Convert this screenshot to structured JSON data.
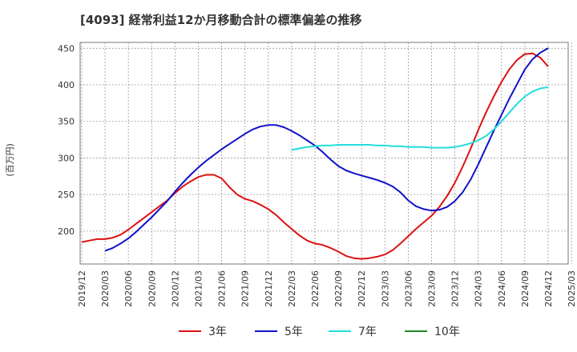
{
  "chart_data": {
    "type": "line",
    "title": "[4093]  経常利益12か月移動合計の標準偏差の推移",
    "ylabel": "(百万円)",
    "xlabel": "",
    "ylim": [
      155,
      458
    ],
    "y_ticks": [
      200,
      250,
      300,
      350,
      400,
      450
    ],
    "x_ticks": [
      "2019/12",
      "2020/03",
      "2020/06",
      "2020/09",
      "2020/12",
      "2021/03",
      "2021/06",
      "2021/09",
      "2021/12",
      "2022/03",
      "2022/06",
      "2022/09",
      "2022/12",
      "2023/03",
      "2023/06",
      "2023/09",
      "2023/12",
      "2024/03",
      "2024/06",
      "2024/09",
      "2024/12",
      "2025/03"
    ],
    "grid": true,
    "legend_position": "bottom",
    "series": [
      {
        "name": "3年",
        "color": "#dd1111",
        "points": [
          [
            "2019/12",
            185
          ],
          [
            "2020/01",
            187
          ],
          [
            "2020/02",
            189
          ],
          [
            "2020/03",
            189
          ],
          [
            "2020/04",
            191
          ],
          [
            "2020/05",
            195
          ],
          [
            "2020/06",
            202
          ],
          [
            "2020/07",
            210
          ],
          [
            "2020/08",
            218
          ],
          [
            "2020/09",
            226
          ],
          [
            "2020/10",
            234
          ],
          [
            "2020/11",
            242
          ],
          [
            "2020/12",
            252
          ],
          [
            "2021/01",
            261
          ],
          [
            "2021/02",
            268
          ],
          [
            "2021/03",
            274
          ],
          [
            "2021/04",
            277
          ],
          [
            "2021/05",
            277
          ],
          [
            "2021/06",
            272
          ],
          [
            "2021/07",
            260
          ],
          [
            "2021/08",
            250
          ],
          [
            "2021/09",
            244
          ],
          [
            "2021/10",
            241
          ],
          [
            "2021/11",
            236
          ],
          [
            "2021/12",
            230
          ],
          [
            "2022/01",
            222
          ],
          [
            "2022/02",
            212
          ],
          [
            "2022/03",
            203
          ],
          [
            "2022/04",
            194
          ],
          [
            "2022/05",
            187
          ],
          [
            "2022/06",
            183
          ],
          [
            "2022/07",
            181
          ],
          [
            "2022/08",
            177
          ],
          [
            "2022/09",
            172
          ],
          [
            "2022/10",
            166
          ],
          [
            "2022/11",
            163
          ],
          [
            "2022/12",
            162
          ],
          [
            "2023/01",
            163
          ],
          [
            "2023/02",
            165
          ],
          [
            "2023/03",
            168
          ],
          [
            "2023/04",
            174
          ],
          [
            "2023/05",
            183
          ],
          [
            "2023/06",
            193
          ],
          [
            "2023/07",
            203
          ],
          [
            "2023/08",
            212
          ],
          [
            "2023/09",
            221
          ],
          [
            "2023/10",
            233
          ],
          [
            "2023/11",
            248
          ],
          [
            "2023/12",
            266
          ],
          [
            "2024/01",
            288
          ],
          [
            "2024/02",
            312
          ],
          [
            "2024/03",
            338
          ],
          [
            "2024/04",
            362
          ],
          [
            "2024/05",
            384
          ],
          [
            "2024/06",
            404
          ],
          [
            "2024/07",
            421
          ],
          [
            "2024/08",
            434
          ],
          [
            "2024/09",
            442
          ],
          [
            "2024/10",
            443
          ],
          [
            "2024/11",
            437
          ],
          [
            "2024/12",
            425
          ]
        ]
      },
      {
        "name": "5年",
        "color": "#1111cc",
        "points": [
          [
            "2020/03",
            173
          ],
          [
            "2020/04",
            177
          ],
          [
            "2020/05",
            183
          ],
          [
            "2020/06",
            190
          ],
          [
            "2020/07",
            199
          ],
          [
            "2020/08",
            209
          ],
          [
            "2020/09",
            219
          ],
          [
            "2020/10",
            230
          ],
          [
            "2020/11",
            241
          ],
          [
            "2020/12",
            254
          ],
          [
            "2021/01",
            266
          ],
          [
            "2021/02",
            277
          ],
          [
            "2021/03",
            287
          ],
          [
            "2021/04",
            296
          ],
          [
            "2021/05",
            304
          ],
          [
            "2021/06",
            312
          ],
          [
            "2021/07",
            319
          ],
          [
            "2021/08",
            326
          ],
          [
            "2021/09",
            333
          ],
          [
            "2021/10",
            339
          ],
          [
            "2021/11",
            343
          ],
          [
            "2021/12",
            345
          ],
          [
            "2022/01",
            345
          ],
          [
            "2022/02",
            342
          ],
          [
            "2022/03",
            337
          ],
          [
            "2022/04",
            331
          ],
          [
            "2022/05",
            324
          ],
          [
            "2022/06",
            317
          ],
          [
            "2022/07",
            308
          ],
          [
            "2022/08",
            298
          ],
          [
            "2022/09",
            289
          ],
          [
            "2022/10",
            283
          ],
          [
            "2022/11",
            279
          ],
          [
            "2022/12",
            276
          ],
          [
            "2023/01",
            273
          ],
          [
            "2023/02",
            270
          ],
          [
            "2023/03",
            266
          ],
          [
            "2023/04",
            261
          ],
          [
            "2023/05",
            253
          ],
          [
            "2023/06",
            242
          ],
          [
            "2023/07",
            234
          ],
          [
            "2023/08",
            230
          ],
          [
            "2023/09",
            228
          ],
          [
            "2023/10",
            229
          ],
          [
            "2023/11",
            233
          ],
          [
            "2023/12",
            241
          ],
          [
            "2024/01",
            253
          ],
          [
            "2024/02",
            270
          ],
          [
            "2024/03",
            291
          ],
          [
            "2024/04",
            314
          ],
          [
            "2024/05",
            337
          ],
          [
            "2024/06",
            359
          ],
          [
            "2024/07",
            381
          ],
          [
            "2024/08",
            401
          ],
          [
            "2024/09",
            421
          ],
          [
            "2024/10",
            435
          ],
          [
            "2024/11",
            444
          ],
          [
            "2024/12",
            450
          ]
        ]
      },
      {
        "name": "7年",
        "color": "#22dddd",
        "points": [
          [
            "2022/03",
            311
          ],
          [
            "2022/04",
            313
          ],
          [
            "2022/05",
            315
          ],
          [
            "2022/06",
            316
          ],
          [
            "2022/07",
            317
          ],
          [
            "2022/08",
            317
          ],
          [
            "2022/09",
            318
          ],
          [
            "2022/10",
            318
          ],
          [
            "2022/11",
            318
          ],
          [
            "2022/12",
            318
          ],
          [
            "2023/01",
            318
          ],
          [
            "2023/02",
            317
          ],
          [
            "2023/03",
            317
          ],
          [
            "2023/04",
            316
          ],
          [
            "2023/05",
            316
          ],
          [
            "2023/06",
            315
          ],
          [
            "2023/07",
            315
          ],
          [
            "2023/08",
            315
          ],
          [
            "2023/09",
            314
          ],
          [
            "2023/10",
            314
          ],
          [
            "2023/11",
            314
          ],
          [
            "2023/12",
            315
          ],
          [
            "2024/01",
            317
          ],
          [
            "2024/02",
            320
          ],
          [
            "2024/03",
            324
          ],
          [
            "2024/04",
            330
          ],
          [
            "2024/05",
            339
          ],
          [
            "2024/06",
            350
          ],
          [
            "2024/07",
            362
          ],
          [
            "2024/08",
            374
          ],
          [
            "2024/09",
            384
          ],
          [
            "2024/10",
            391
          ],
          [
            "2024/11",
            395
          ],
          [
            "2024/12",
            397
          ]
        ]
      },
      {
        "name": "10年",
        "color": "#228b22",
        "points": []
      }
    ]
  }
}
